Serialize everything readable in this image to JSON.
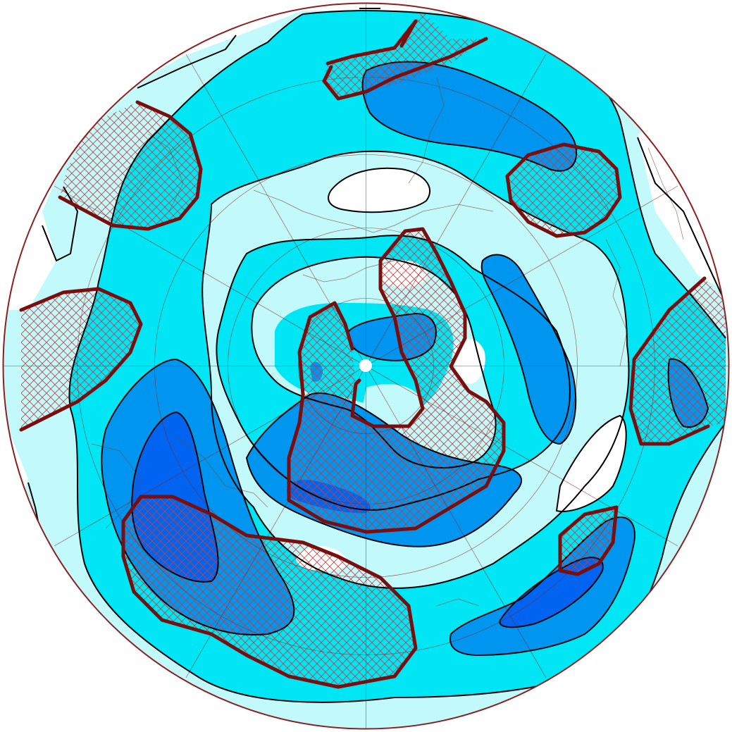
{
  "colors": {
    "level_1": "#c2fafb",
    "level_2": "#00e6f5",
    "level_3": "#0096f0",
    "level_4": "#0064f0",
    "background": "#ffffff",
    "significance_contour": "#7a0d0d",
    "hatch": "#c04040",
    "boundary": "#8b2020",
    "pole": "#ffffff"
  },
  "projection": "polar-stereographic-north",
  "icons": {
    "pole_marker": "pole-dot-icon"
  }
}
